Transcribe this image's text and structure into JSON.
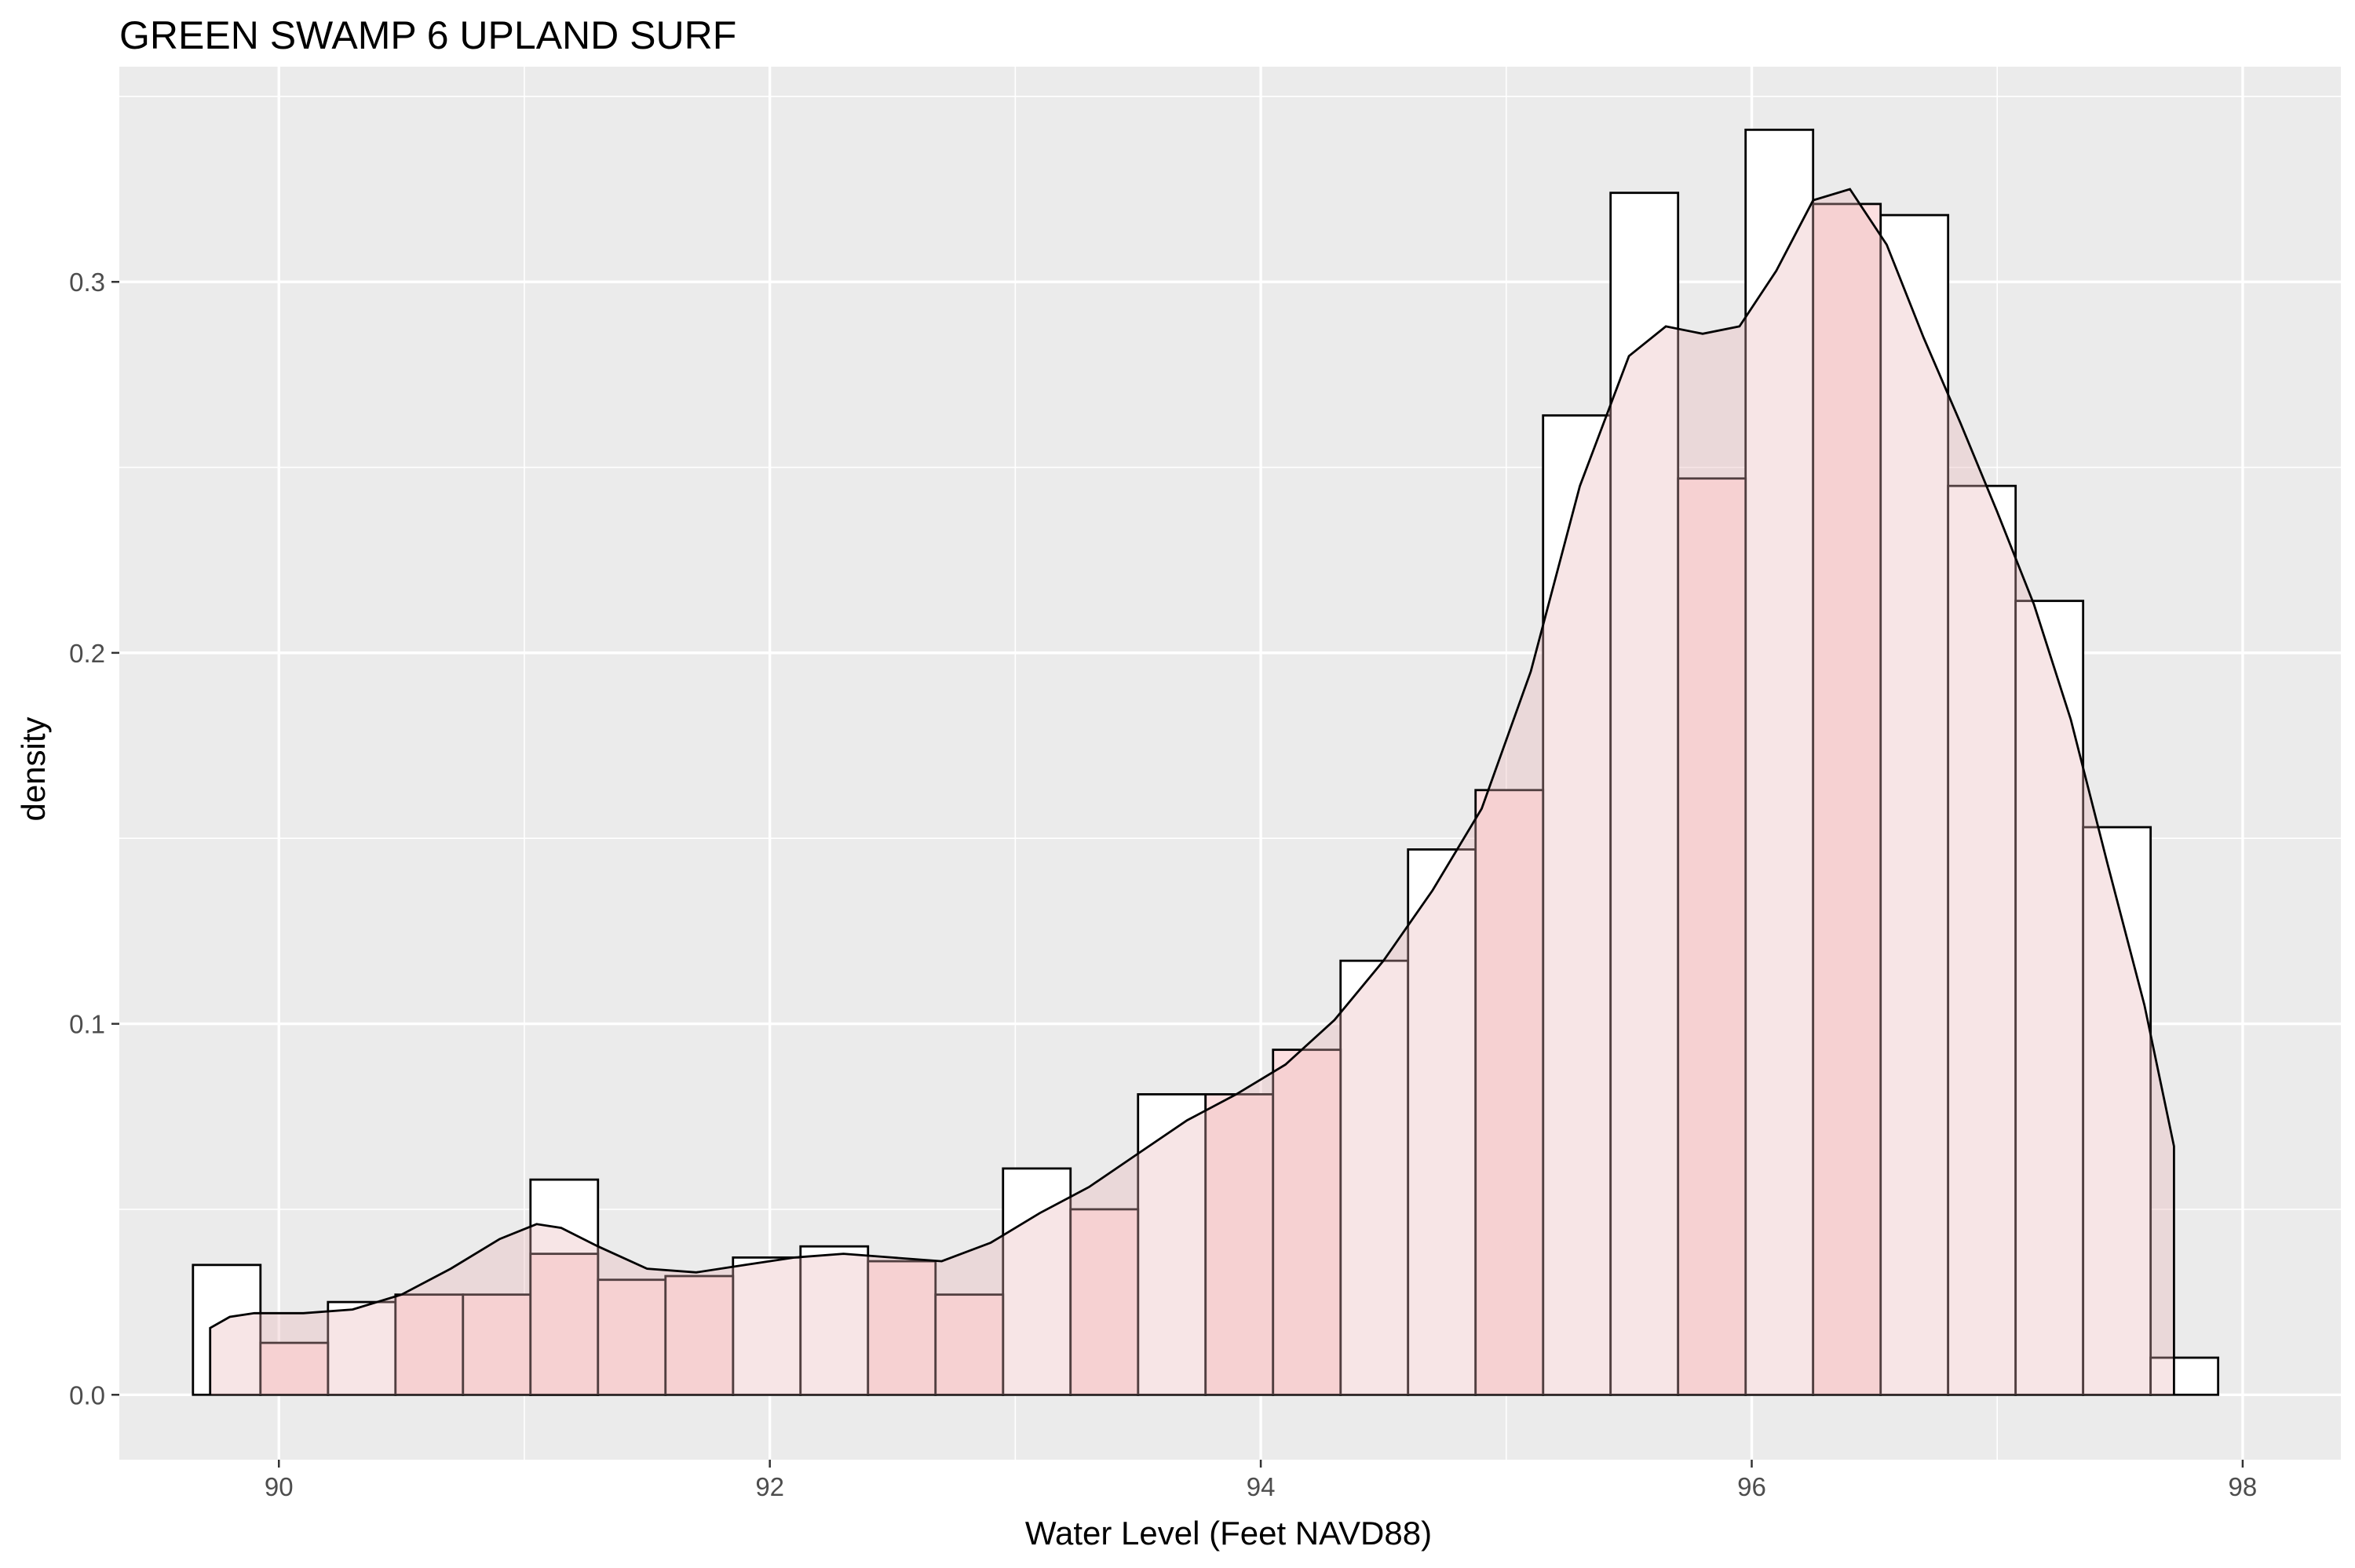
{
  "chart_data": {
    "type": "bar",
    "title": "GREEN SWAMP 6 UPLAND SURF",
    "xlabel": "Water Level (Feet NAVD88)",
    "ylabel": "density",
    "xlim": [
      89.35,
      98.4
    ],
    "ylim": [
      -0.0175,
      0.358
    ],
    "x_ticks": [
      90,
      92,
      94,
      96,
      98
    ],
    "x_tick_labels": [
      "90",
      "92",
      "94",
      "96",
      "98"
    ],
    "y_ticks": [
      0.0,
      0.1,
      0.2,
      0.3
    ],
    "y_tick_labels": [
      "0.0",
      "0.1",
      "0.2",
      "0.3"
    ],
    "grid": true,
    "panel_background": "#ebebeb",
    "histogram": {
      "bin_width": 0.275,
      "bin_starts": [
        89.65,
        89.925,
        90.2,
        90.475,
        90.75,
        91.025,
        91.3,
        91.575,
        91.85,
        92.125,
        92.4,
        92.675,
        92.95,
        93.225,
        93.5,
        93.775,
        94.05,
        94.325,
        94.6,
        94.875,
        95.15,
        95.425,
        95.7,
        95.975,
        96.25,
        96.525,
        96.8,
        97.075,
        97.35,
        97.625
      ],
      "series": [
        {
          "fill": "#ffffff",
          "values": [
            0.035,
            0.0,
            0.025,
            0.0,
            0.0,
            0.058,
            0.0,
            0.0,
            0.037,
            0.04,
            0.0,
            0.0,
            0.061,
            0.0,
            0.081,
            0.0,
            0.0,
            0.117,
            0.147,
            0.0,
            0.264,
            0.324,
            0.0,
            0.341,
            0.0,
            0.318,
            0.245,
            0.214,
            0.153,
            0.01
          ]
        },
        {
          "fill": "#fde0e1",
          "values": [
            0.0,
            0.014,
            0.0,
            0.027,
            0.027,
            0.038,
            0.031,
            0.032,
            0.0,
            0.0,
            0.036,
            0.027,
            0.0,
            0.05,
            0.0,
            0.081,
            0.093,
            0.0,
            0.0,
            0.163,
            0.0,
            0.0,
            0.247,
            0.0,
            0.321,
            0.0,
            0.0,
            0.0,
            0.0,
            0.0
          ]
        }
      ]
    },
    "density_curve": {
      "fill": "#e8b4b8",
      "fill_opacity": 0.35,
      "x": [
        89.72,
        89.8,
        89.9,
        90.1,
        90.3,
        90.5,
        90.7,
        90.9,
        91.05,
        91.15,
        91.3,
        91.5,
        91.7,
        91.9,
        92.1,
        92.3,
        92.5,
        92.7,
        92.9,
        93.1,
        93.3,
        93.5,
        93.7,
        93.9,
        94.1,
        94.3,
        94.5,
        94.7,
        94.9,
        95.1,
        95.3,
        95.5,
        95.65,
        95.8,
        95.95,
        96.1,
        96.25,
        96.4,
        96.55,
        96.7,
        96.85,
        97.0,
        97.15,
        97.3,
        97.45,
        97.6,
        97.72
      ],
      "y": [
        0.018,
        0.021,
        0.022,
        0.022,
        0.023,
        0.027,
        0.034,
        0.042,
        0.046,
        0.045,
        0.04,
        0.034,
        0.033,
        0.035,
        0.037,
        0.038,
        0.037,
        0.036,
        0.041,
        0.049,
        0.056,
        0.065,
        0.074,
        0.081,
        0.089,
        0.101,
        0.117,
        0.136,
        0.158,
        0.195,
        0.245,
        0.28,
        0.288,
        0.286,
        0.288,
        0.303,
        0.322,
        0.325,
        0.31,
        0.285,
        0.262,
        0.238,
        0.213,
        0.182,
        0.143,
        0.105,
        0.067
      ]
    }
  }
}
